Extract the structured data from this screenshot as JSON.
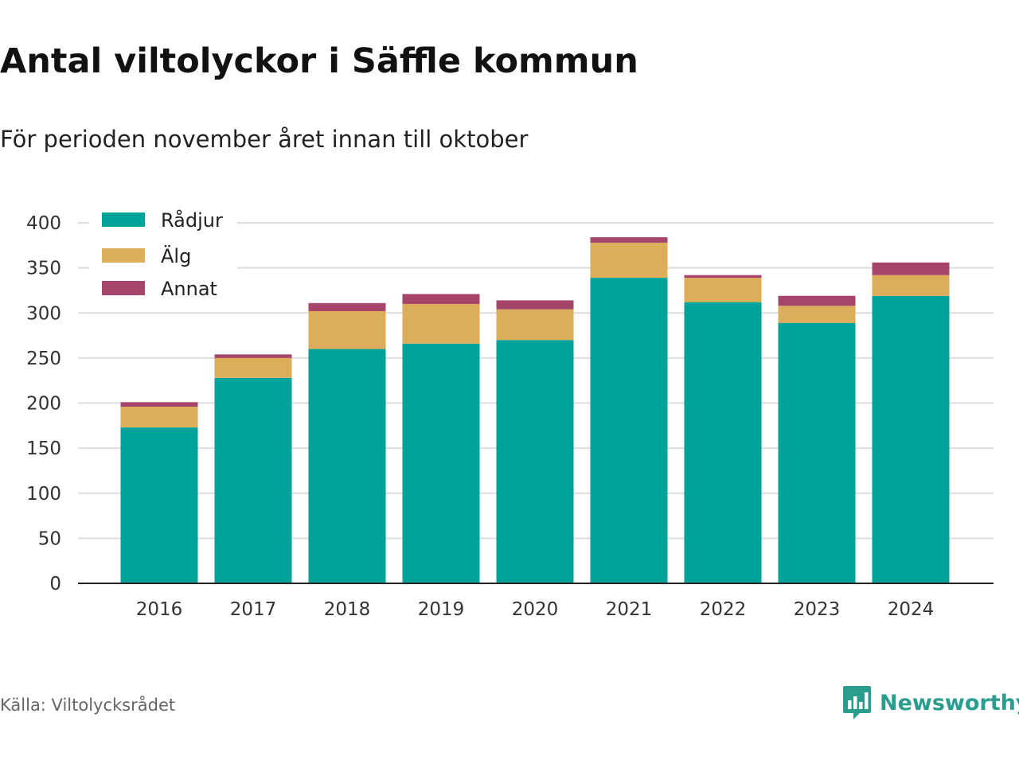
{
  "title": "Antal viltolyckor i Säffle kommun",
  "subtitle": "För perioden november året innan till oktober",
  "source": "Källa: Viltolycksrådet",
  "brand": {
    "name": "Newsworthy",
    "icon": "newsworthy-logo-icon",
    "color": "#2a9d8f"
  },
  "chart_data": {
    "type": "bar",
    "stacked": true,
    "categories": [
      "2016",
      "2017",
      "2018",
      "2019",
      "2020",
      "2021",
      "2022",
      "2023",
      "2024"
    ],
    "series": [
      {
        "name": "Rådjur",
        "color": "#00a39a",
        "values": [
          173,
          228,
          260,
          266,
          270,
          339,
          312,
          289,
          319
        ]
      },
      {
        "name": "Älg",
        "color": "#dcae5a",
        "values": [
          23,
          22,
          42,
          44,
          34,
          39,
          27,
          19,
          23
        ]
      },
      {
        "name": "Annat",
        "color": "#a6446b",
        "values": [
          5,
          4,
          9,
          11,
          10,
          6,
          3,
          11,
          14
        ]
      }
    ],
    "ylim": [
      0,
      400
    ],
    "yticks": [
      0,
      50,
      100,
      150,
      200,
      250,
      300,
      350,
      400
    ],
    "xlabel": "",
    "ylabel": "",
    "grid": true,
    "legend": "top-left"
  }
}
